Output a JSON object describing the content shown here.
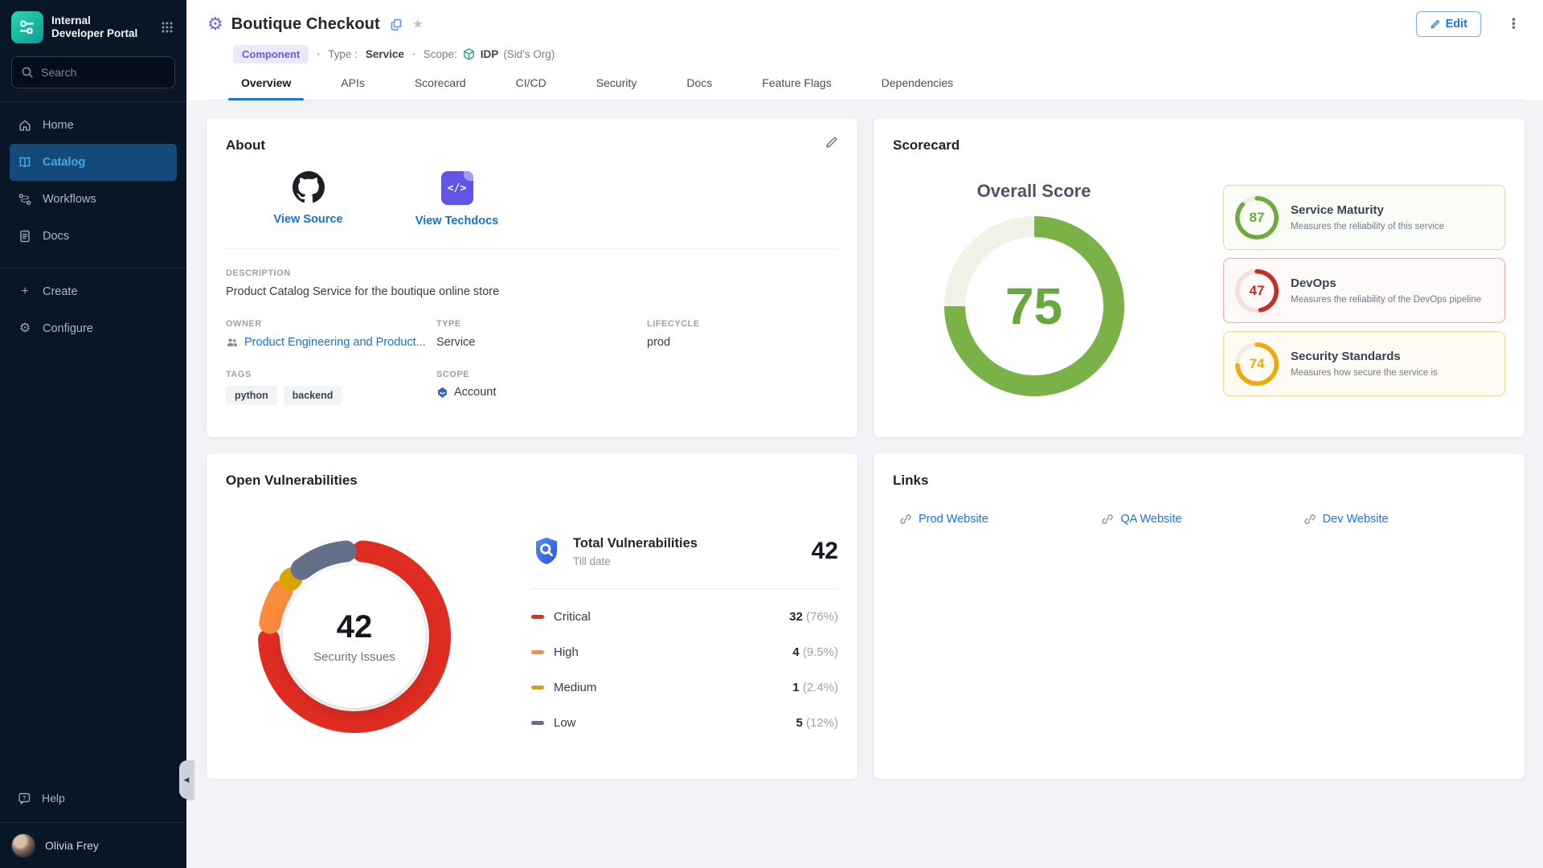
{
  "icons": {
    "star": "★",
    "kebab": "⋮",
    "plus": "+",
    "gear": "⚙",
    "bullet": "•",
    "collapse": "◀",
    "techdocs_glyph": "</>"
  },
  "sidebar": {
    "logo_line1": "Internal",
    "logo_line2": "Developer Portal",
    "search_placeholder": "Search",
    "items": [
      {
        "label": "Home"
      },
      {
        "label": "Catalog"
      },
      {
        "label": "Workflows"
      },
      {
        "label": "Docs"
      }
    ],
    "actions": [
      {
        "label": "Create"
      },
      {
        "label": "Configure"
      }
    ],
    "help_label": "Help",
    "user_name": "Olivia Frey"
  },
  "header": {
    "title": "Boutique Checkout",
    "kind_badge": "Component",
    "type_label": "Type :",
    "type_value": "Service",
    "scope_label": "Scope:",
    "scope_name": "IDP",
    "scope_org": "(Sid's Org)",
    "edit_button": "Edit"
  },
  "tabs": [
    "Overview",
    "APIs",
    "Scorecard",
    "CI/CD",
    "Security",
    "Docs",
    "Feature Flags",
    "Dependencies"
  ],
  "about": {
    "title": "About",
    "link_source": "View Source",
    "link_techdocs": "View Techdocs",
    "description_label": "DESCRIPTION",
    "description": "Product Catalog Service for the boutique online store",
    "owner_label": "OWNER",
    "owner": "Product Engineering and Product...",
    "type_label": "TYPE",
    "type": "Service",
    "lifecycle_label": "LIFECYCLE",
    "lifecycle": "prod",
    "tags_label": "TAGS",
    "tags": [
      "python",
      "backend"
    ],
    "scope_label": "SCOPE",
    "scope": "Account"
  },
  "scorecard": {
    "title": "Scorecard",
    "overall_label": "Overall Score",
    "overall_score": 75,
    "overall_ring": {
      "value": 75,
      "max": 100,
      "color": "#7ab248",
      "track": "#eef3e6"
    },
    "cards": [
      {
        "score": 87,
        "name": "Service Maturity",
        "description": "Measures the reliability of this service",
        "color": "#6cab3c",
        "border": "#c9e2ae",
        "bg": "#fafcf8",
        "ring": {
          "value": 87,
          "max": 100,
          "color": "#6cab3c",
          "track": "#eaece6"
        }
      },
      {
        "score": 47,
        "name": "DevOps",
        "description": "Measures the reliability of the DevOps pipeline",
        "color": "#c62f26",
        "border": "#f1aea7",
        "bg": "#fdf9f8",
        "ring": {
          "value": 47,
          "max": 100,
          "color": "#c62f26",
          "track": "#f5dedb"
        }
      },
      {
        "score": 74,
        "name": "Security Standards",
        "description": "Measures how secure the service is",
        "color": "#f2a905",
        "border": "#f6d894",
        "bg": "#fefbf4",
        "ring": {
          "value": 74,
          "max": 100,
          "color": "#f2a905",
          "track": "#f5ecd6"
        }
      }
    ]
  },
  "vulnerabilities": {
    "title": "Open Vulnerabilities",
    "donut_total": 42,
    "donut_label": "Security Issues",
    "donut": {
      "gap": 11,
      "slices": [
        {
          "label": "Critical",
          "percent": 76,
          "color": "#e02d22"
        },
        {
          "label": "High",
          "percent": 9.5,
          "color": "#fb8b3d"
        },
        {
          "label": "Medium",
          "percent": 2.4,
          "color": "#d9a400"
        },
        {
          "label": "Low",
          "percent": 12,
          "color": "#64708a"
        }
      ]
    },
    "summary_title": "Total Vulnerabilities",
    "summary_subtitle": "Till date",
    "summary_total": 42,
    "rows": [
      {
        "label": "Critical",
        "count": 32,
        "percent": "(76%)",
        "color": "#e02d22"
      },
      {
        "label": "High",
        "count": 4,
        "percent": "(9.5%)",
        "color": "#fb8b3d"
      },
      {
        "label": "Medium",
        "count": 1,
        "percent": "(2.4%)",
        "color": "#d9a400"
      },
      {
        "label": "Low",
        "count": 5,
        "percent": "(12%)",
        "color": "#64708a"
      }
    ]
  },
  "links_card": {
    "title": "Links",
    "links": [
      {
        "label": "Prod Website"
      },
      {
        "label": "QA Website"
      },
      {
        "label": "Dev Website"
      }
    ]
  },
  "chart_data": [
    {
      "type": "pie",
      "variant": "donut-gauge",
      "title": "Overall Score",
      "value": 75,
      "max": 100,
      "color": "#7ab248"
    },
    {
      "type": "pie",
      "variant": "donut-gauge",
      "title": "Service Maturity",
      "value": 87,
      "max": 100,
      "color": "#6cab3c"
    },
    {
      "type": "pie",
      "variant": "donut-gauge",
      "title": "DevOps",
      "value": 47,
      "max": 100,
      "color": "#c62f26"
    },
    {
      "type": "pie",
      "variant": "donut-gauge",
      "title": "Security Standards",
      "value": 74,
      "max": 100,
      "color": "#f2a905"
    },
    {
      "type": "pie",
      "variant": "donut",
      "title": "Open Vulnerabilities",
      "center_value": 42,
      "center_label": "Security Issues",
      "slices": [
        {
          "label": "Critical",
          "value": 32,
          "percent": 76,
          "color": "#e02d22"
        },
        {
          "label": "High",
          "value": 4,
          "percent": 9.5,
          "color": "#fb8b3d"
        },
        {
          "label": "Medium",
          "value": 1,
          "percent": 2.4,
          "color": "#d9a400"
        },
        {
          "label": "Low",
          "value": 5,
          "percent": 12,
          "color": "#64708a"
        }
      ]
    }
  ]
}
